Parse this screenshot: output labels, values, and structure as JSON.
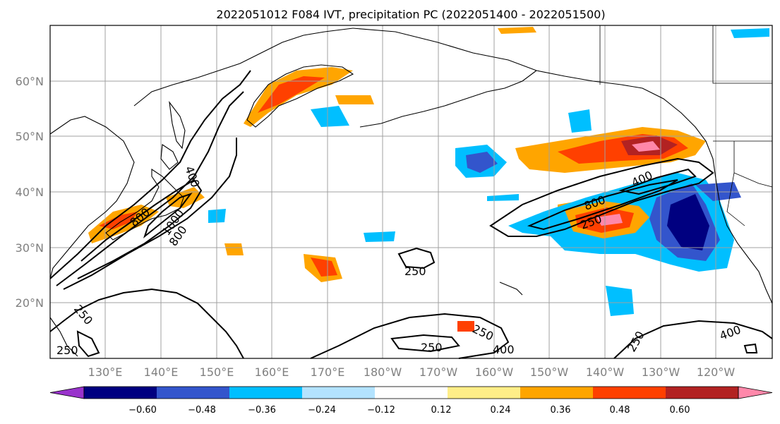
{
  "title": "2022051012 F084 IVT, precipitation PC (2022051400 - 2022051500)",
  "map": {
    "x_ticks": [
      "130°E",
      "140°E",
      "150°E",
      "160°E",
      "170°E",
      "180°W",
      "170°W",
      "160°W",
      "150°W",
      "140°W",
      "130°W",
      "120°W"
    ],
    "y_ticks": [
      "20°N",
      "30°N",
      "40°N",
      "50°N",
      "60°N"
    ],
    "contour_labels": [
      "400",
      "800",
      "1000",
      "800",
      "250",
      "250",
      "250",
      "250",
      "400",
      "250",
      "250",
      "800",
      "400",
      "250",
      "400"
    ]
  },
  "colorbar": {
    "labels": [
      "−0.60",
      "−0.48",
      "−0.36",
      "−0.24",
      "−0.12",
      "0.12",
      "0.24",
      "0.36",
      "0.48",
      "0.60"
    ],
    "colors": [
      "#9933cc",
      "#000080",
      "#3355cc",
      "#00bfff",
      "#b3e3ff",
      "#ffffff",
      "#ffee88",
      "#ffa500",
      "#ff4000",
      "#b22222",
      "#ff88aa"
    ]
  }
}
